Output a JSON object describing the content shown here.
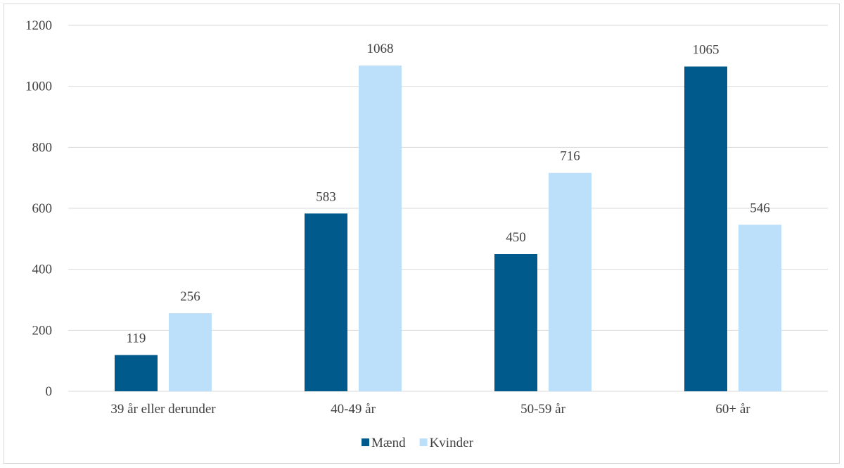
{
  "chart_data": {
    "type": "bar",
    "categories": [
      "39 år eller derunder",
      "40-49 år",
      "50-59 år",
      "60+ år"
    ],
    "series": [
      {
        "name": "Mænd",
        "values": [
          119,
          583,
          450,
          1065
        ],
        "color": "#005b8c"
      },
      {
        "name": "Kvinder",
        "values": [
          256,
          1068,
          716,
          546
        ],
        "color": "#bde0fa"
      }
    ],
    "ylim": [
      0,
      1200
    ],
    "yticks": [
      0,
      200,
      400,
      600,
      800,
      1000,
      1200
    ],
    "grid": true,
    "legend_position": "bottom",
    "gridline_color": "#d9d9d9",
    "label_color": "#404040"
  }
}
